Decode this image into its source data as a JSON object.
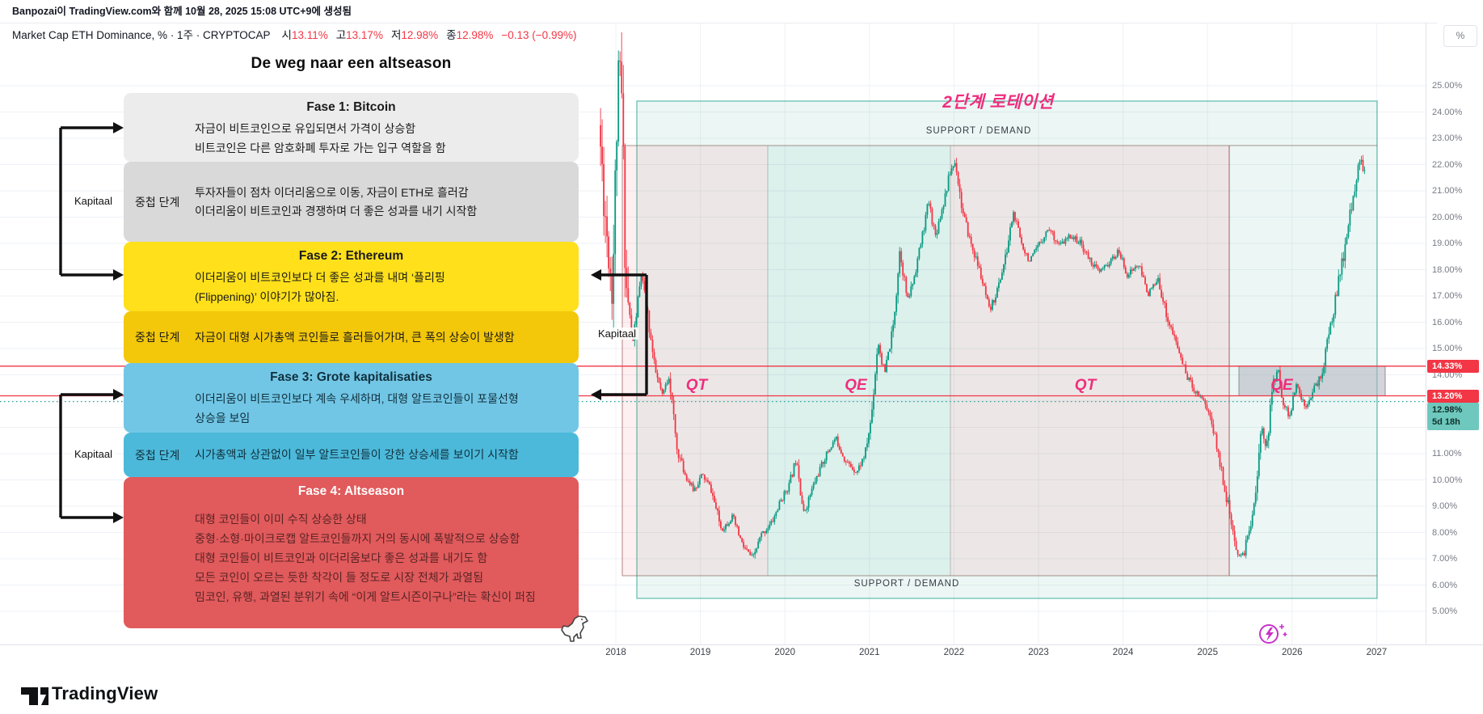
{
  "header": {
    "attribution": "Banpozai이 TradingView.com와 함께 10월 28, 2025 15:08 UTC+9에 생성됨",
    "legend": {
      "symbol": "Market Cap ETH Dominance, % · 1주 · CRYPTOCAP",
      "ohlc": [
        {
          "k": "시",
          "v": "13.11%"
        },
        {
          "k": "고",
          "v": "13.17%"
        },
        {
          "k": "저",
          "v": "12.98%"
        },
        {
          "k": "종",
          "v": "12.98%"
        }
      ],
      "change": "−0.13 (−0.99%)"
    }
  },
  "panel": {
    "title": "De weg naar een altseason",
    "kapitaal": "Kapitaal",
    "rows": [
      {
        "kind": "phase",
        "header": "Fase 1: Bitcoin",
        "bg": "#ECECEC",
        "fg": "#1b1b1b",
        "lines": [
          "자금이 비트코인으로 유입되면서 가격이 상승함",
          "비트코인은 다른 암호화폐 투자로 가는 입구 역할을 함"
        ]
      },
      {
        "kind": "overlap",
        "label": "중첩 단계",
        "bg": "#D9D9D9",
        "fg": "#1b1b1b",
        "lines": [
          "투자자들이 점차 이더리움으로 이동, 자금이 ETH로 흘러감",
          "이더리움이 비트코인과 경쟁하며 더 좋은 성과를 내기 시작함"
        ]
      },
      {
        "kind": "phase",
        "header": "Fase 2: Ethereum",
        "bg": "#FFE01A",
        "fg": "#1b1b1b",
        "lines": [
          "이더리움이 비트코인보다 더 좋은 성과를 내며 ‘플리핑",
          "(Flippening)’ 이야기가 많아짐."
        ]
      },
      {
        "kind": "overlap",
        "label": "중첩 단계",
        "bg": "#F3C70A",
        "fg": "#1b1b1b",
        "lines": [
          "자금이 대형 시가총액 코인들로 흘러들어가며, 큰 폭의 상승이 발생함"
        ]
      },
      {
        "kind": "phase",
        "header": "Fase 3: Grote kapitalisaties",
        "bg": "#72C6E5",
        "fg": "#10303d",
        "lines": [
          "이더리움이 비트코인보다 계속 우세하며, 대형 알트코인들이 포물선형",
          "상승을 보임"
        ]
      },
      {
        "kind": "overlap",
        "label": "중첩 단계",
        "bg": "#4CB9DA",
        "fg": "#10303d",
        "lines": [
          "시가총액과 상관없이 일부 알트코인들이 강한 상승세를 보이기 시작함"
        ]
      },
      {
        "kind": "phase",
        "header": "Fase 4: Altseason",
        "bg": "#E15A5C",
        "fg": "#5a2424",
        "header_fg": "#ffffff",
        "lines": [
          "대형 코인들이 이미 수직 상승한 상태",
          "중형·소형·마이크로캡 알트코인들까지 거의 동시에 폭발적으로 상승함",
          "대형 코인들이 비트코인과 이더리움보다 좋은 성과를 내기도 함",
          "모든 코인이 오르는 듯한 착각이 들 정도로 시장 전체가 과열됨",
          "밈코인, 유행, 과열된 분위기 속에 “이게 알트시즌이구나”라는 확신이 퍼짐"
        ]
      }
    ]
  },
  "annotations": {
    "rotation_title": "2단계 로테이션",
    "zone_labels": [
      "QT",
      "QE",
      "QT",
      "QE"
    ],
    "support_demand_top": "SUPPORT / DEMAND",
    "support_demand_bottom": "SUPPORT / DEMAND",
    "accent_pink": "#f02d7d"
  },
  "price_scale": {
    "unit_button": "%",
    "ticks": [
      "25.00%",
      "24.00%",
      "23.00%",
      "22.00%",
      "21.00%",
      "20.00%",
      "19.00%",
      "18.00%",
      "17.00%",
      "16.00%",
      "15.00%",
      "14.00%",
      "13.00%",
      "12.00%",
      "11.00%",
      "10.00%",
      "9.00%",
      "8.00%",
      "7.00%",
      "6.00%",
      "5.00%"
    ],
    "level_labels": [
      {
        "text": "14.33%",
        "value": 14.33,
        "bg": "#f23645"
      },
      {
        "text": "13.20%",
        "value": 13.2,
        "bg": "#f23645"
      }
    ],
    "countdown_label": {
      "line1": "12.98%",
      "line2": "5d 18h",
      "value": 12.98,
      "bg": "#6ec8bd"
    }
  },
  "time_scale": {
    "years": [
      "2018",
      "2019",
      "2020",
      "2021",
      "2022",
      "2023",
      "2024",
      "2025",
      "2026",
      "2027"
    ]
  },
  "footer": {
    "brand": "TradingView"
  },
  "colors": {
    "up": "#089981",
    "down": "#f23645",
    "grid": "#eef1f6",
    "teal_zone": "#089981",
    "pink_zone": "#f23645"
  },
  "chart_data": {
    "type": "line",
    "title": "Market Cap ETH Dominance (CRYPTOCAP), 1W, %",
    "ylabel": "%",
    "ylim": [
      5,
      27
    ],
    "x_range": [
      2017.8,
      2027
    ],
    "grid": true,
    "last_bar": {
      "open": 13.11,
      "high": 13.17,
      "low": 12.98,
      "close": 12.98,
      "change": -0.13,
      "change_pct": -0.99
    },
    "price_lines": [
      {
        "value": 14.33,
        "style": "solid",
        "color": "#f23645"
      },
      {
        "value": 13.2,
        "style": "solid",
        "color": "#f23645"
      },
      {
        "value": 12.98,
        "style": "dotted",
        "color": "#26a69a"
      }
    ],
    "zones": [
      {
        "label": "SUPPORT / DEMAND",
        "kind": "supply-demand-box",
        "x_years": [
          2018.25,
          2027.0
        ],
        "y_pct": [
          6.1,
          24.4
        ]
      },
      {
        "label": "QT",
        "kind": "macro-period",
        "x_years": [
          2018.08,
          2019.8
        ]
      },
      {
        "label": "QE",
        "kind": "macro-period",
        "x_years": [
          2019.8,
          2021.96
        ]
      },
      {
        "label": "QT",
        "kind": "macro-period",
        "x_years": [
          2021.96,
          2025.26
        ]
      },
      {
        "label": "QE",
        "kind": "macro-period",
        "x_years": [
          2025.26,
          2027.0
        ]
      },
      {
        "label": "gray-range-box",
        "kind": "range-box",
        "x_years": [
          2025.37,
          2027.1
        ],
        "y_pct": [
          13.2,
          14.33
        ]
      }
    ],
    "series": [
      {
        "name": "ETH Dominance weekly (approx. path keypoints [year, %])",
        "points": [
          [
            2017.8,
            23.5
          ],
          [
            2017.88,
            20.0
          ],
          [
            2017.96,
            17.2
          ],
          [
            2018.02,
            24.5
          ],
          [
            2018.06,
            25.8
          ],
          [
            2018.12,
            17.5
          ],
          [
            2018.2,
            15.2
          ],
          [
            2018.3,
            17.8
          ],
          [
            2018.38,
            16.2
          ],
          [
            2018.46,
            14.2
          ],
          [
            2018.55,
            13.2
          ],
          [
            2018.63,
            14.0
          ],
          [
            2018.72,
            11.2
          ],
          [
            2018.82,
            10.2
          ],
          [
            2018.92,
            9.6
          ],
          [
            2019.02,
            10.2
          ],
          [
            2019.12,
            9.7
          ],
          [
            2019.25,
            8.1
          ],
          [
            2019.38,
            8.6
          ],
          [
            2019.5,
            7.5
          ],
          [
            2019.62,
            7.0
          ],
          [
            2019.72,
            7.9
          ],
          [
            2019.85,
            8.4
          ],
          [
            2019.95,
            9.2
          ],
          [
            2020.05,
            9.8
          ],
          [
            2020.14,
            10.9
          ],
          [
            2020.22,
            8.7
          ],
          [
            2020.35,
            9.9
          ],
          [
            2020.48,
            10.9
          ],
          [
            2020.6,
            11.6
          ],
          [
            2020.72,
            10.7
          ],
          [
            2020.85,
            10.3
          ],
          [
            2020.95,
            11.0
          ],
          [
            2021.02,
            12.3
          ],
          [
            2021.1,
            15.3
          ],
          [
            2021.18,
            14.0
          ],
          [
            2021.28,
            15.8
          ],
          [
            2021.36,
            18.8
          ],
          [
            2021.45,
            16.8
          ],
          [
            2021.52,
            17.6
          ],
          [
            2021.62,
            19.2
          ],
          [
            2021.7,
            20.6
          ],
          [
            2021.78,
            19.3
          ],
          [
            2021.88,
            20.6
          ],
          [
            2021.96,
            21.8
          ],
          [
            2022.02,
            22.1
          ],
          [
            2022.1,
            20.2
          ],
          [
            2022.2,
            19.0
          ],
          [
            2022.3,
            18.0
          ],
          [
            2022.42,
            16.4
          ],
          [
            2022.52,
            17.3
          ],
          [
            2022.62,
            18.6
          ],
          [
            2022.7,
            20.2
          ],
          [
            2022.8,
            19.0
          ],
          [
            2022.9,
            18.3
          ],
          [
            2023.0,
            18.9
          ],
          [
            2023.12,
            19.6
          ],
          [
            2023.25,
            18.9
          ],
          [
            2023.38,
            19.3
          ],
          [
            2023.5,
            19.0
          ],
          [
            2023.6,
            18.4
          ],
          [
            2023.72,
            17.9
          ],
          [
            2023.85,
            18.3
          ],
          [
            2023.95,
            18.7
          ],
          [
            2024.05,
            17.8
          ],
          [
            2024.18,
            18.2
          ],
          [
            2024.3,
            17.1
          ],
          [
            2024.42,
            17.6
          ],
          [
            2024.52,
            16.2
          ],
          [
            2024.65,
            15.0
          ],
          [
            2024.75,
            14.0
          ],
          [
            2024.85,
            13.4
          ],
          [
            2024.95,
            13.1
          ],
          [
            2025.05,
            12.2
          ],
          [
            2025.15,
            10.6
          ],
          [
            2025.25,
            8.9
          ],
          [
            2025.33,
            7.3
          ],
          [
            2025.42,
            7.1
          ],
          [
            2025.5,
            8.2
          ],
          [
            2025.58,
            9.8
          ],
          [
            2025.64,
            12.1
          ],
          [
            2025.7,
            11.2
          ],
          [
            2025.77,
            13.6
          ],
          [
            2025.83,
            14.2
          ],
          [
            2025.9,
            12.9
          ],
          [
            2025.97,
            12.4
          ],
          [
            2026.05,
            13.6
          ],
          [
            2026.15,
            12.8
          ],
          [
            2026.25,
            13.4
          ],
          [
            2026.35,
            14.0
          ],
          [
            2026.45,
            15.8
          ],
          [
            2026.55,
            17.5
          ],
          [
            2026.65,
            19.3
          ],
          [
            2026.74,
            21.2
          ],
          [
            2026.82,
            22.3
          ],
          [
            2026.86,
            21.6
          ]
        ]
      }
    ]
  }
}
